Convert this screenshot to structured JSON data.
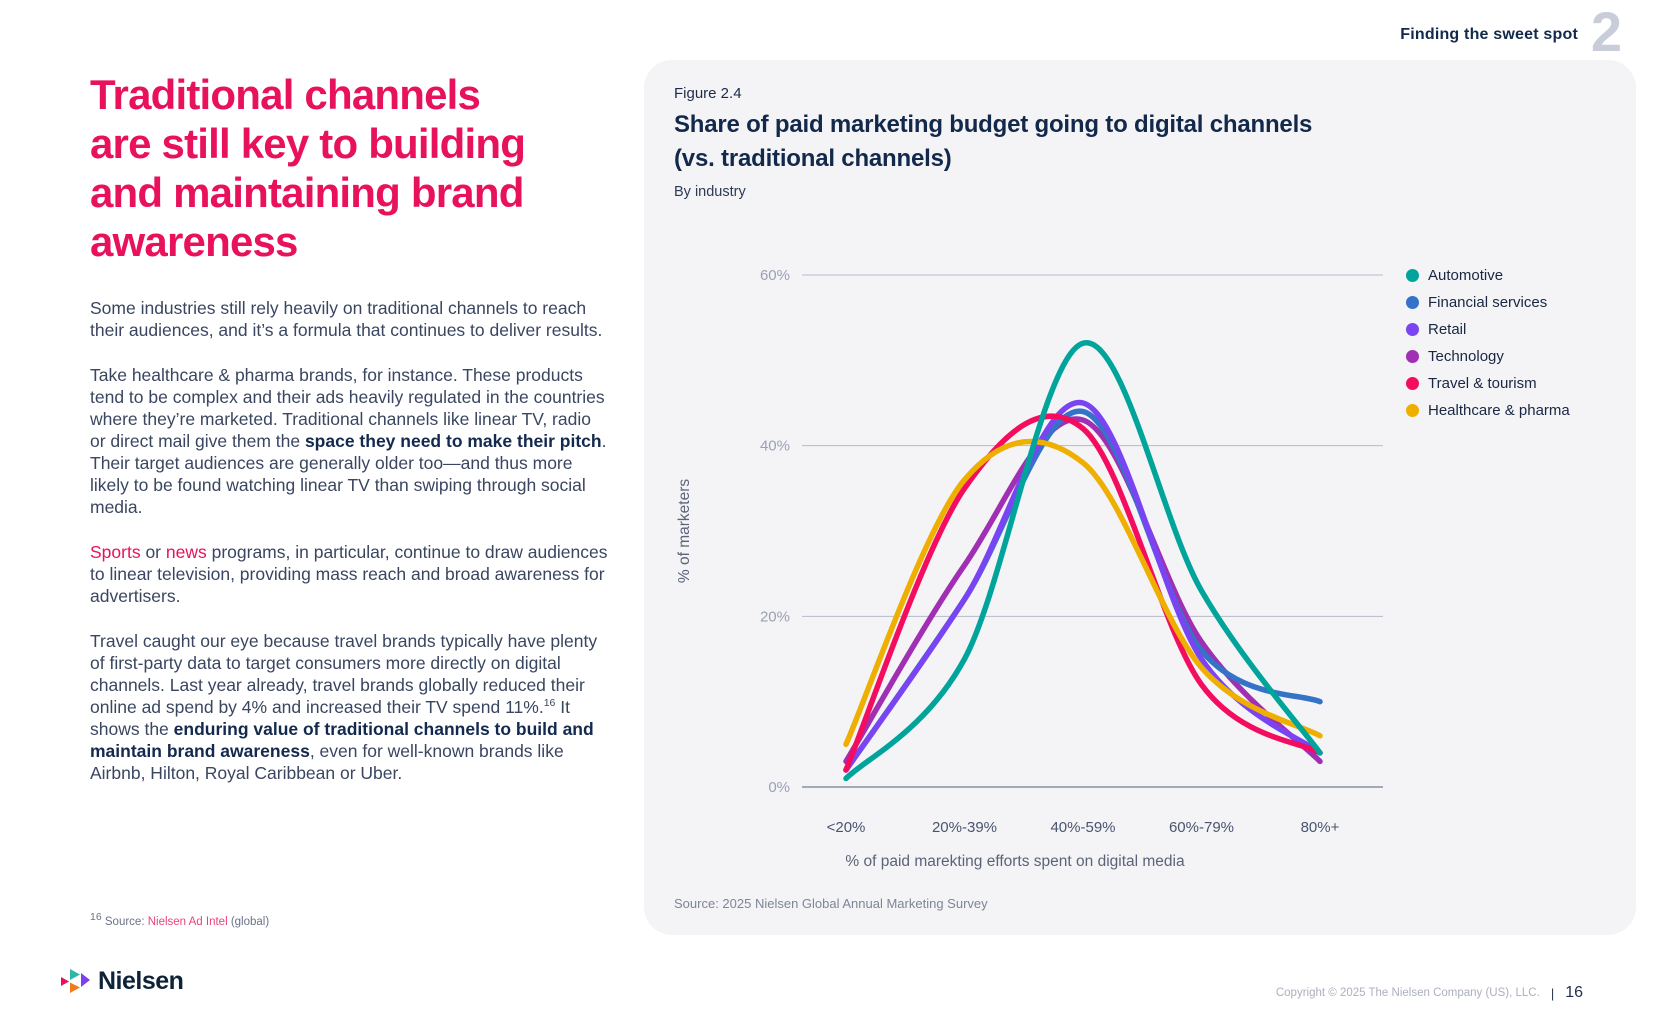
{
  "header": {
    "section_label": "Finding the sweet spot",
    "section_number": "2"
  },
  "article": {
    "headline_lines": [
      "Traditional channels",
      "are still key to building",
      "and maintaining brand",
      "awareness"
    ],
    "paragraphs": [
      {
        "segments": [
          {
            "t": "Some industries still rely heavily on traditional channels to reach their audiences, and it’s a formula that continues to deliver results.",
            "s": ""
          }
        ]
      },
      {
        "segments": [
          {
            "t": "Take healthcare & pharma brands, for instance. These products tend to be complex and their ads heavily regulated in the countries where they’re marketed. Traditional channels like linear TV, radio or direct mail give them the ",
            "s": ""
          },
          {
            "t": "space they need to make their pitch",
            "s": "b"
          },
          {
            "t": ". Their target audiences are generally older too—and thus more likely to be found watching linear TV than swiping through social media.",
            "s": ""
          }
        ]
      },
      {
        "segments": [
          {
            "t": "Sports",
            "s": "link"
          },
          {
            "t": " or ",
            "s": ""
          },
          {
            "t": "news",
            "s": "link"
          },
          {
            "t": " programs, in particular, continue to draw audiences to linear television, providing mass reach and broad awareness for advertisers.",
            "s": ""
          }
        ]
      },
      {
        "segments": [
          {
            "t": "Travel caught our eye because travel brands typically have plenty of first-party data to target consumers more directly on digital channels. Last year already, travel brands globally reduced their online ad spend by 4% and increased their TV spend 11%.",
            "s": ""
          },
          {
            "t": "16",
            "s": "sup"
          },
          {
            "t": " It shows the ",
            "s": ""
          },
          {
            "t": "enduring value of traditional channels to build and maintain brand awareness",
            "s": "b"
          },
          {
            "t": ", even for well-known brands like Airbnb, Hilton, Royal Caribbean or Uber.",
            "s": ""
          }
        ]
      },
      {
        "segments": [
          {
            "t": "16",
            "s": "sup"
          },
          {
            "t": " Source: ",
            "s": ""
          },
          {
            "t": "Nielsen Ad Intel",
            "s": "link"
          },
          {
            "t": " (global)",
            "s": ""
          }
        ]
      }
    ]
  },
  "chart_data": {
    "type": "line",
    "figure_label": "Figure 2.4",
    "title_lines": [
      "Share of paid marketing budget going to digital channels",
      "(vs. traditional channels)"
    ],
    "subtitle": "By industry",
    "categories": [
      "<20%",
      "20%-39%",
      "40%-59%",
      "60%-79%",
      "80%+"
    ],
    "series": [
      {
        "name": "Automotive",
        "color": "#00A49B",
        "values": [
          1,
          15,
          52,
          23,
          4
        ]
      },
      {
        "name": "Financial services",
        "color": "#3473C7",
        "values": [
          2,
          22,
          44,
          16,
          10
        ]
      },
      {
        "name": "Retail",
        "color": "#7A44F2",
        "values": [
          2,
          22,
          45,
          15,
          4
        ]
      },
      {
        "name": "Technology",
        "color": "#A02FB3",
        "values": [
          3,
          26,
          43,
          17,
          3
        ]
      },
      {
        "name": "Travel & tourism",
        "color": "#F40D5E",
        "values": [
          2,
          35,
          42,
          12,
          4
        ]
      },
      {
        "name": "Healthcare & pharma",
        "color": "#EFAF00",
        "values": [
          5,
          36,
          38,
          14,
          6
        ]
      }
    ],
    "xlabel": "% of paid marekting efforts spent on digital media",
    "ylabel": "% of marketers",
    "yticks": [
      {
        "value": 0,
        "label": "0%"
      },
      {
        "value": 20,
        "label": "20%"
      },
      {
        "value": 40,
        "label": "40%"
      },
      {
        "value": 60,
        "label": "60%"
      }
    ],
    "ylim": [
      0,
      60
    ],
    "grid": true,
    "legend_position": "top-right",
    "source": "Source: 2025 Nielsen Global Annual Marketing Survey"
  },
  "footer": {
    "logo_text": "Nielsen",
    "copyright": "Copyright © 2025 The Nielsen Company (US), LLC.",
    "divider": "|",
    "page_number": "16"
  }
}
